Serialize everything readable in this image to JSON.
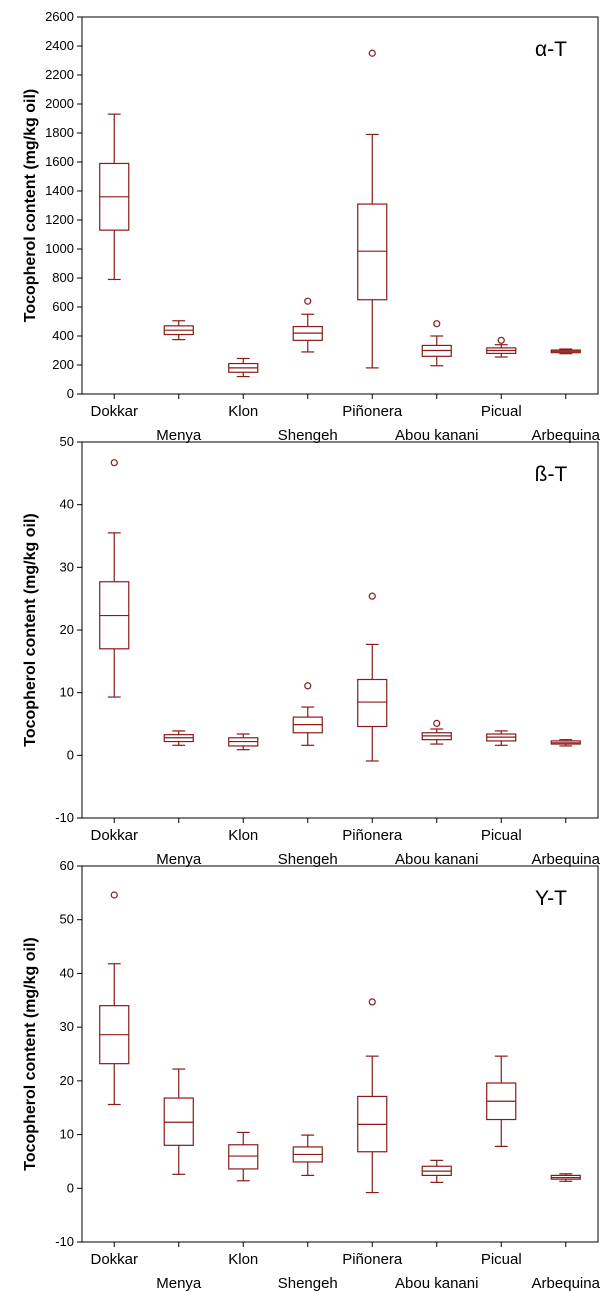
{
  "chart_data": [
    {
      "type": "boxplot",
      "title": "α-T",
      "ylabel": "Tocopherol content (mg/kg oil)",
      "ylim": [
        0,
        2600
      ],
      "yticks": [
        0,
        200,
        400,
        600,
        800,
        1000,
        1200,
        1400,
        1600,
        1800,
        2000,
        2200,
        2400,
        2600
      ],
      "categories": [
        "Dokkar",
        "Menya",
        "Klon",
        "Shengeh",
        "Piñonera",
        "Abou kanani",
        "Picual",
        "Arbequina"
      ],
      "series": [
        {
          "values": [
            {
              "min": 790,
              "q1": 1130,
              "median": 1360,
              "q3": 1590,
              "max": 1930,
              "outliers": []
            },
            {
              "min": 375,
              "q1": 410,
              "median": 440,
              "q3": 470,
              "max": 505,
              "outliers": []
            },
            {
              "min": 120,
              "q1": 150,
              "median": 180,
              "q3": 210,
              "max": 245,
              "outliers": []
            },
            {
              "min": 290,
              "q1": 370,
              "median": 420,
              "q3": 465,
              "max": 550,
              "outliers": [
                640
              ]
            },
            {
              "min": 180,
              "q1": 650,
              "median": 985,
              "q3": 1310,
              "max": 1790,
              "outliers": [
                2350
              ]
            },
            {
              "min": 195,
              "q1": 260,
              "median": 300,
              "q3": 335,
              "max": 400,
              "outliers": [
                485
              ]
            },
            {
              "min": 255,
              "q1": 280,
              "median": 300,
              "q3": 318,
              "max": 340,
              "outliers": [
                370
              ]
            },
            {
              "min": 278,
              "q1": 285,
              "median": 295,
              "q3": 303,
              "max": 310,
              "outliers": []
            }
          ]
        }
      ]
    },
    {
      "type": "boxplot",
      "title": "ß-T",
      "ylabel": "Tocopherol content (mg/kg oil)",
      "ylim": [
        -10,
        50
      ],
      "yticks": [
        -10,
        0,
        10,
        20,
        30,
        40,
        50
      ],
      "categories": [
        "Dokkar",
        "Menya",
        "Klon",
        "Shengeh",
        "Piñonera",
        "Abou kanani",
        "Picual",
        "Arbequina"
      ],
      "series": [
        {
          "values": [
            {
              "min": 9.3,
              "q1": 17,
              "median": 22.3,
              "q3": 27.7,
              "max": 35.5,
              "outliers": [
                46.7
              ]
            },
            {
              "min": 1.6,
              "q1": 2.2,
              "median": 2.8,
              "q3": 3.3,
              "max": 3.9,
              "outliers": []
            },
            {
              "min": 0.9,
              "q1": 1.5,
              "median": 2.2,
              "q3": 2.8,
              "max": 3.4,
              "outliers": []
            },
            {
              "min": 1.6,
              "q1": 3.6,
              "median": 4.9,
              "q3": 6.1,
              "max": 7.7,
              "outliers": [
                11.1
              ]
            },
            {
              "min": -0.9,
              "q1": 4.6,
              "median": 8.5,
              "q3": 12.1,
              "max": 17.7,
              "outliers": [
                25.4
              ]
            },
            {
              "min": 1.8,
              "q1": 2.5,
              "median": 3.1,
              "q3": 3.6,
              "max": 4.2,
              "outliers": [
                5.1
              ]
            },
            {
              "min": 1.6,
              "q1": 2.3,
              "median": 2.9,
              "q3": 3.4,
              "max": 3.9,
              "outliers": []
            },
            {
              "min": 1.5,
              "q1": 1.8,
              "median": 2.0,
              "q3": 2.3,
              "max": 2.5,
              "outliers": []
            }
          ]
        }
      ]
    },
    {
      "type": "boxplot",
      "title": "Y-T",
      "ylabel": "Tocopherol content (mg/kg oil)",
      "ylim": [
        -10,
        60
      ],
      "yticks": [
        -10,
        0,
        10,
        20,
        30,
        40,
        50,
        60
      ],
      "categories": [
        "Dokkar",
        "Menya",
        "Klon",
        "Shengeh",
        "Piñonera",
        "Abou kanani",
        "Picual",
        "Arbequina"
      ],
      "series": [
        {
          "values": [
            {
              "min": 15.6,
              "q1": 23.2,
              "median": 28.6,
              "q3": 34.0,
              "max": 41.8,
              "outliers": [
                54.6
              ]
            },
            {
              "min": 2.6,
              "q1": 8.0,
              "median": 12.3,
              "q3": 16.8,
              "max": 22.2,
              "outliers": []
            },
            {
              "min": 1.4,
              "q1": 3.6,
              "median": 6.0,
              "q3": 8.1,
              "max": 10.4,
              "outliers": []
            },
            {
              "min": 2.4,
              "q1": 4.9,
              "median": 6.3,
              "q3": 7.7,
              "max": 9.9,
              "outliers": []
            },
            {
              "min": -0.8,
              "q1": 6.8,
              "median": 11.9,
              "q3": 17.1,
              "max": 24.6,
              "outliers": [
                34.7
              ]
            },
            {
              "min": 1.1,
              "q1": 2.4,
              "median": 3.2,
              "q3": 4.1,
              "max": 5.2,
              "outliers": []
            },
            {
              "min": 7.8,
              "q1": 12.8,
              "median": 16.2,
              "q3": 19.6,
              "max": 24.6,
              "outliers": []
            },
            {
              "min": 1.3,
              "q1": 1.7,
              "median": 2.0,
              "q3": 2.4,
              "max": 2.7,
              "outliers": []
            }
          ]
        }
      ]
    }
  ],
  "colors": {
    "box": "#8b1a1a",
    "axis": "#000000",
    "background": "#ffffff"
  }
}
